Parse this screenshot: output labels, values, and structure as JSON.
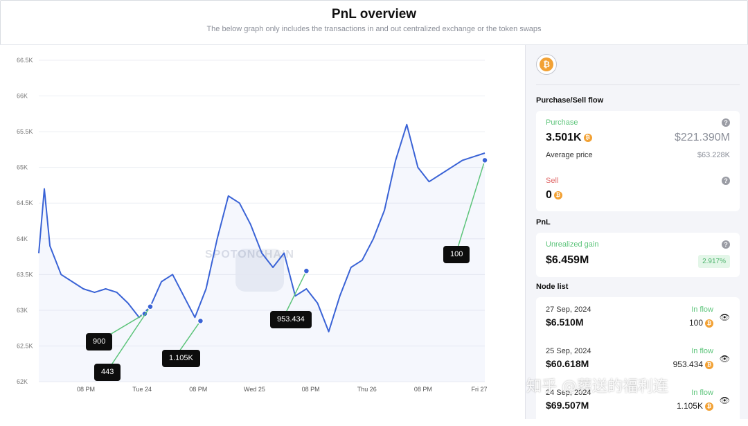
{
  "header": {
    "title": "PnL overview",
    "subtitle": "The below graph only includes the transactions in and out centralized exchange or the token swaps"
  },
  "chart_data": {
    "type": "line",
    "title": "",
    "xlabel": "",
    "ylabel": "",
    "ylim": [
      62000,
      66500
    ],
    "y_ticks": [
      "62K",
      "62.5K",
      "63K",
      "63.5K",
      "64K",
      "64.5K",
      "65K",
      "65.5K",
      "66K",
      "66.5K"
    ],
    "x_ticks": [
      "08 PM",
      "Tue 24",
      "08 PM",
      "Wed 25",
      "08 PM",
      "Thu 26",
      "08 PM",
      "Fri 27"
    ],
    "x": [
      0,
      2,
      4,
      6,
      8,
      12,
      16,
      20,
      24,
      28,
      32,
      36,
      40,
      44,
      48,
      52,
      56,
      60,
      64,
      68,
      72,
      76,
      80,
      84,
      88,
      92,
      96,
      100,
      104,
      108,
      112,
      116,
      120,
      124,
      128,
      132,
      136,
      140,
      144,
      148,
      152,
      156,
      160
    ],
    "series": [
      {
        "color": "#3a63d6",
        "values": [
          63800,
          64700,
          63900,
          63700,
          63500,
          63400,
          63300,
          63250,
          63300,
          63250,
          63100,
          62900,
          63050,
          63400,
          63500,
          63200,
          62900,
          63300,
          64000,
          64600,
          64500,
          64200,
          63800,
          63600,
          63800,
          63200,
          63300,
          63100,
          62700,
          63200,
          63600,
          63700,
          64000,
          64400,
          65100,
          65600,
          65000,
          64800,
          64900,
          65000,
          65100,
          65150,
          65200
        ]
      }
    ],
    "markers": [
      {
        "label": "900",
        "x": 38,
        "y": 62950
      },
      {
        "label": "443",
        "x": 40,
        "y": 63050
      },
      {
        "label": "1.105K",
        "x": 58,
        "y": 62850
      },
      {
        "label": "953.434",
        "x": 96,
        "y": 63550
      },
      {
        "label": "100",
        "x": 160,
        "y": 65100
      }
    ],
    "watermark": "SPOTONCHAIN",
    "grid": true
  },
  "sidebar": {
    "coin_symbol": "₿",
    "purchase_sell_title": "Purchase/Sell flow",
    "purchase": {
      "label": "Purchase",
      "amount": "3.501K",
      "usd": "$221.390M",
      "avg_label": "Average price",
      "avg_value": "$63.228K"
    },
    "sell": {
      "label": "Sell",
      "amount": "0"
    },
    "pnl_title": "PnL",
    "pnl": {
      "label": "Unrealized gain",
      "value": "$6.459M",
      "percent": "2.917%"
    },
    "node_list_title": "Node list",
    "nodes": [
      {
        "date": "27 Sep, 2024",
        "value": "$6.510M",
        "flow": "In flow",
        "amount": "100"
      },
      {
        "date": "25 Sep, 2024",
        "value": "$60.618M",
        "flow": "In flow",
        "amount": "953.434"
      },
      {
        "date": "24 Sep, 2024",
        "value": "$69.507M",
        "flow": "In flow",
        "amount": "1.105K"
      }
    ],
    "help_symbol": "?",
    "eye_symbol": "👁"
  },
  "overlay_watermark": "知乎 @葬送的福利连",
  "colors": {
    "line": "#3a63d6",
    "marker_line": "#5cc47a",
    "green": "#5cc47a",
    "red": "#e06b6b",
    "coin": "#f2a134"
  }
}
